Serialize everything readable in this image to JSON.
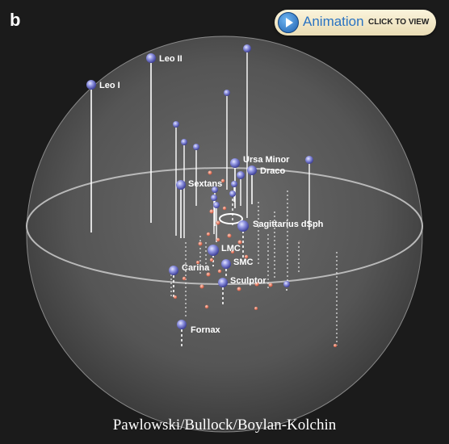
{
  "panel_letter": "b",
  "animation_button": {
    "label": "Animation",
    "call_to_action": "CLICK TO VIEW"
  },
  "credit": "Pawlowski/Bullock/Boylan-Kolchin",
  "galaxies": [
    {
      "label": "Leo I"
    },
    {
      "label": "Leo II"
    },
    {
      "label": "Ursa Minor"
    },
    {
      "label": "Draco"
    },
    {
      "label": "Sextans"
    },
    {
      "label": "Sagittarius dSph"
    },
    {
      "label": "LMC"
    },
    {
      "label": "SMC"
    },
    {
      "label": "Carina"
    },
    {
      "label": "Sculptor"
    },
    {
      "label": "Fornax"
    }
  ]
}
